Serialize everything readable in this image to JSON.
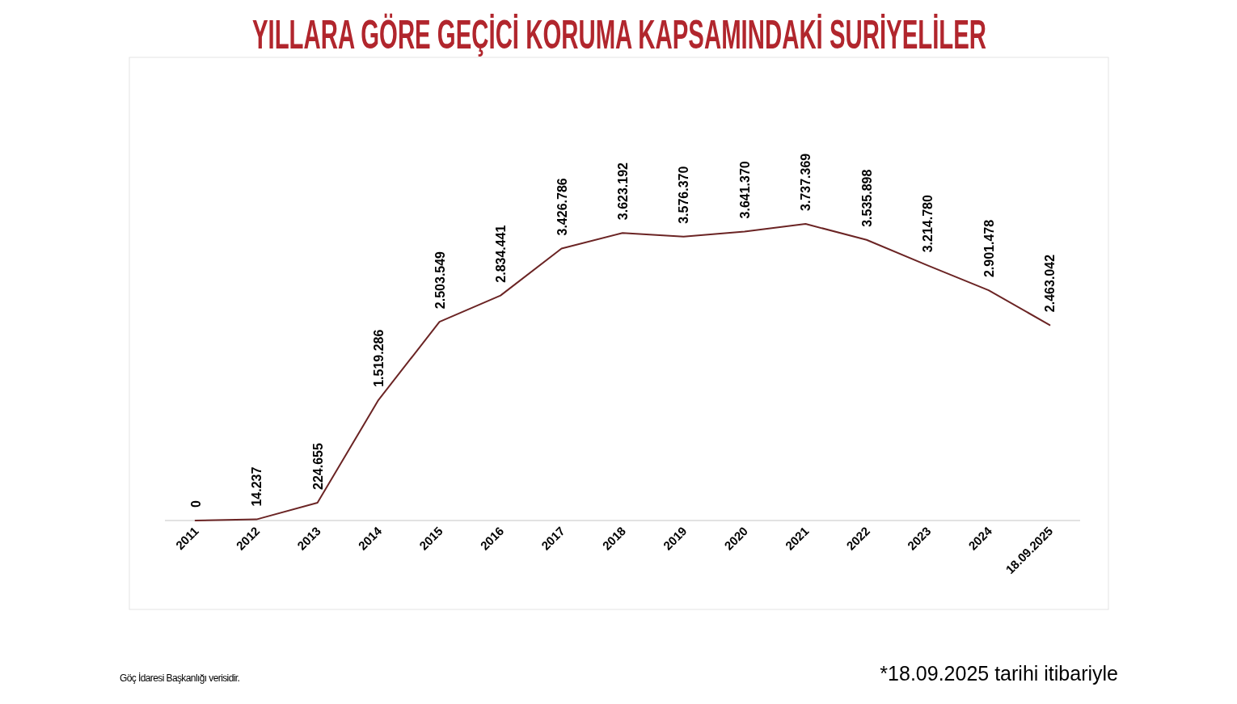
{
  "chart_data": {
    "type": "line",
    "title": "YILLARA GÖRE GEÇİCİ KORUMA KAPSAMINDAKİ SURİYELİLER",
    "categories": [
      "2011",
      "2012",
      "2013",
      "2014",
      "2015",
      "2016",
      "2017",
      "2018",
      "2019",
      "2020",
      "2021",
      "2022",
      "2023",
      "2024",
      "18.09.2025"
    ],
    "series": [
      {
        "color": "#6b2424",
        "values": [
          0,
          14237,
          224655,
          1519286,
          2503549,
          2834441,
          3426786,
          3623192,
          3576370,
          3641370,
          3737369,
          3535898,
          3214780,
          2901478,
          2463042
        ],
        "value_labels": [
          "0",
          "14.237",
          "224.655",
          "1.519.286",
          "2.503.549",
          "2.834.441",
          "3.426.786",
          "3.623.192",
          "3.576.370",
          "3.641.370",
          "3.737.369",
          "3.535.898",
          "3.214.780",
          "2.901.478",
          "2.463.042"
        ]
      }
    ],
    "annotations": [
      "Göç İdaresi Başkanlığı verisidir.",
      "*18.09.2025 tarihi itibariyle"
    ]
  }
}
